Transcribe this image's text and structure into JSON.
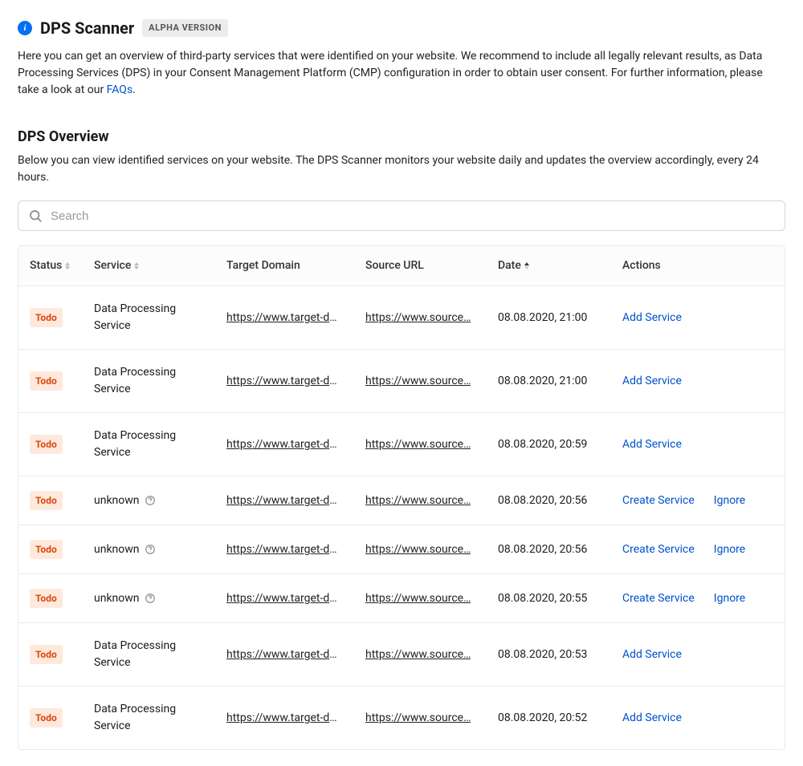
{
  "header": {
    "title": "DPS Scanner",
    "badge": "ALPHA VERSION",
    "intro_prefix": "Here you can get an overview of third-party services that were identified on your website. We recommend to include all legally relevant results, as Data Processing Services (DPS) in your Consent Management Platform (CMP) configuration in order to obtain user consent. For further information, please take a look at our ",
    "faq_link_text": "FAQs",
    "intro_suffix": "."
  },
  "overview": {
    "title": "DPS Overview",
    "description": "Below you can view identified services on your website. The DPS Scanner monitors your website daily and updates the overview accordingly, every 24 hours."
  },
  "search": {
    "placeholder": "Search"
  },
  "table": {
    "columns": {
      "status": "Status",
      "service": "Service",
      "target_domain": "Target Domain",
      "source_url": "Source URL",
      "date": "Date",
      "actions": "Actions"
    },
    "action_labels": {
      "add_service": "Add Service",
      "create_service": "Create Service",
      "ignore": "Ignore"
    },
    "rows": [
      {
        "status": "Todo",
        "service": "Data Processing Service",
        "unknown": false,
        "target_domain": "https://www.target-do…",
        "source_url": "https://www.source…",
        "date": "08.08.2020, 21:00",
        "actions": [
          "add_service"
        ]
      },
      {
        "status": "Todo",
        "service": "Data Processing Service",
        "unknown": false,
        "target_domain": "https://www.target-do…",
        "source_url": "https://www.source…",
        "date": "08.08.2020, 21:00",
        "actions": [
          "add_service"
        ]
      },
      {
        "status": "Todo",
        "service": "Data Processing Service",
        "unknown": false,
        "target_domain": "https://www.target-do…",
        "source_url": "https://www.source…",
        "date": "08.08.2020, 20:59",
        "actions": [
          "add_service"
        ]
      },
      {
        "status": "Todo",
        "service": "unknown",
        "unknown": true,
        "target_domain": "https://www.target-do…",
        "source_url": "https://www.source…",
        "date": "08.08.2020, 20:56",
        "actions": [
          "create_service",
          "ignore"
        ]
      },
      {
        "status": "Todo",
        "service": "unknown",
        "unknown": true,
        "target_domain": "https://www.target-do…",
        "source_url": "https://www.source…",
        "date": "08.08.2020, 20:56",
        "actions": [
          "create_service",
          "ignore"
        ]
      },
      {
        "status": "Todo",
        "service": "unknown",
        "unknown": true,
        "target_domain": "https://www.target-do…",
        "source_url": "https://www.source…",
        "date": "08.08.2020, 20:55",
        "actions": [
          "create_service",
          "ignore"
        ]
      },
      {
        "status": "Todo",
        "service": "Data Processing Service",
        "unknown": false,
        "target_domain": "https://www.target-do…",
        "source_url": "https://www.source…",
        "date": "08.08.2020, 20:53",
        "actions": [
          "add_service"
        ]
      },
      {
        "status": "Todo",
        "service": "Data Processing Service",
        "unknown": false,
        "target_domain": "https://www.target-do…",
        "source_url": "https://www.source…",
        "date": "08.08.2020, 20:52",
        "actions": [
          "add_service"
        ]
      }
    ]
  },
  "colors": {
    "accent": "#0070f3",
    "link": "#0052cc",
    "todo_bg": "#ffe9dc",
    "todo_fg": "#d9480f",
    "border": "#eaeaea"
  }
}
